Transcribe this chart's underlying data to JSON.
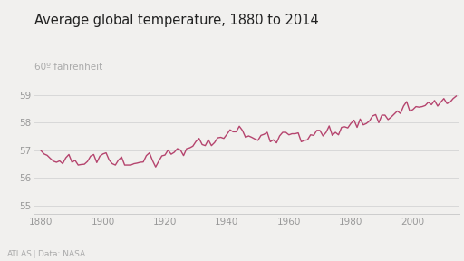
{
  "title": "Average global temperature, 1880 to 2014",
  "ylabel_label": "60º fahrenheit",
  "background_color": "#f1f0ee",
  "line_color": "#b5446e",
  "ylim": [
    54.7,
    59.6
  ],
  "xlim": [
    1878,
    2015
  ],
  "yticks": [
    55,
    56,
    57,
    58,
    59
  ],
  "xticks": [
    1880,
    1900,
    1920,
    1940,
    1960,
    1980,
    2000
  ],
  "years": [
    1880,
    1881,
    1882,
    1883,
    1884,
    1885,
    1886,
    1887,
    1888,
    1889,
    1890,
    1891,
    1892,
    1893,
    1894,
    1895,
    1896,
    1897,
    1898,
    1899,
    1900,
    1901,
    1902,
    1903,
    1904,
    1905,
    1906,
    1907,
    1908,
    1909,
    1910,
    1911,
    1912,
    1913,
    1914,
    1915,
    1916,
    1917,
    1918,
    1919,
    1920,
    1921,
    1922,
    1923,
    1924,
    1925,
    1926,
    1927,
    1928,
    1929,
    1930,
    1931,
    1932,
    1933,
    1934,
    1935,
    1936,
    1937,
    1938,
    1939,
    1940,
    1941,
    1942,
    1943,
    1944,
    1945,
    1946,
    1947,
    1948,
    1949,
    1950,
    1951,
    1952,
    1953,
    1954,
    1955,
    1956,
    1957,
    1958,
    1959,
    1960,
    1961,
    1962,
    1963,
    1964,
    1965,
    1966,
    1967,
    1968,
    1969,
    1970,
    1971,
    1972,
    1973,
    1974,
    1975,
    1976,
    1977,
    1978,
    1979,
    1980,
    1981,
    1982,
    1983,
    1984,
    1985,
    1986,
    1987,
    1988,
    1989,
    1990,
    1991,
    1992,
    1993,
    1994,
    1995,
    1996,
    1997,
    1998,
    1999,
    2000,
    2001,
    2002,
    2003,
    2004,
    2005,
    2006,
    2007,
    2008,
    2009,
    2010,
    2011,
    2012,
    2013,
    2014
  ],
  "temps_f": [
    56.99,
    56.87,
    56.82,
    56.71,
    56.61,
    56.57,
    56.62,
    56.52,
    56.73,
    56.85,
    56.57,
    56.64,
    56.47,
    56.49,
    56.5,
    56.6,
    56.79,
    56.85,
    56.56,
    56.79,
    56.87,
    56.91,
    56.65,
    56.52,
    56.47,
    56.65,
    56.76,
    56.47,
    56.47,
    56.47,
    56.52,
    56.54,
    56.57,
    56.58,
    56.81,
    56.91,
    56.63,
    56.4,
    56.61,
    56.8,
    56.83,
    57.01,
    56.86,
    56.93,
    57.06,
    57.01,
    56.81,
    57.06,
    57.09,
    57.15,
    57.32,
    57.43,
    57.21,
    57.17,
    57.38,
    57.17,
    57.28,
    57.45,
    57.47,
    57.43,
    57.58,
    57.74,
    57.67,
    57.67,
    57.87,
    57.72,
    57.47,
    57.52,
    57.47,
    57.41,
    57.36,
    57.54,
    57.58,
    57.65,
    57.31,
    57.38,
    57.27,
    57.52,
    57.65,
    57.65,
    57.56,
    57.6,
    57.6,
    57.63,
    57.31,
    57.36,
    57.38,
    57.56,
    57.54,
    57.72,
    57.72,
    57.52,
    57.65,
    57.88,
    57.54,
    57.65,
    57.56,
    57.83,
    57.85,
    57.81,
    57.97,
    58.09,
    57.83,
    58.13,
    57.92,
    57.97,
    58.06,
    58.24,
    58.29,
    58.0,
    58.27,
    58.27,
    58.11,
    58.2,
    58.31,
    58.42,
    58.33,
    58.6,
    58.76,
    58.42,
    58.47,
    58.58,
    58.56,
    58.58,
    58.62,
    58.74,
    58.65,
    58.8,
    58.6,
    58.74,
    58.87,
    58.69,
    58.74,
    58.87,
    58.96
  ]
}
